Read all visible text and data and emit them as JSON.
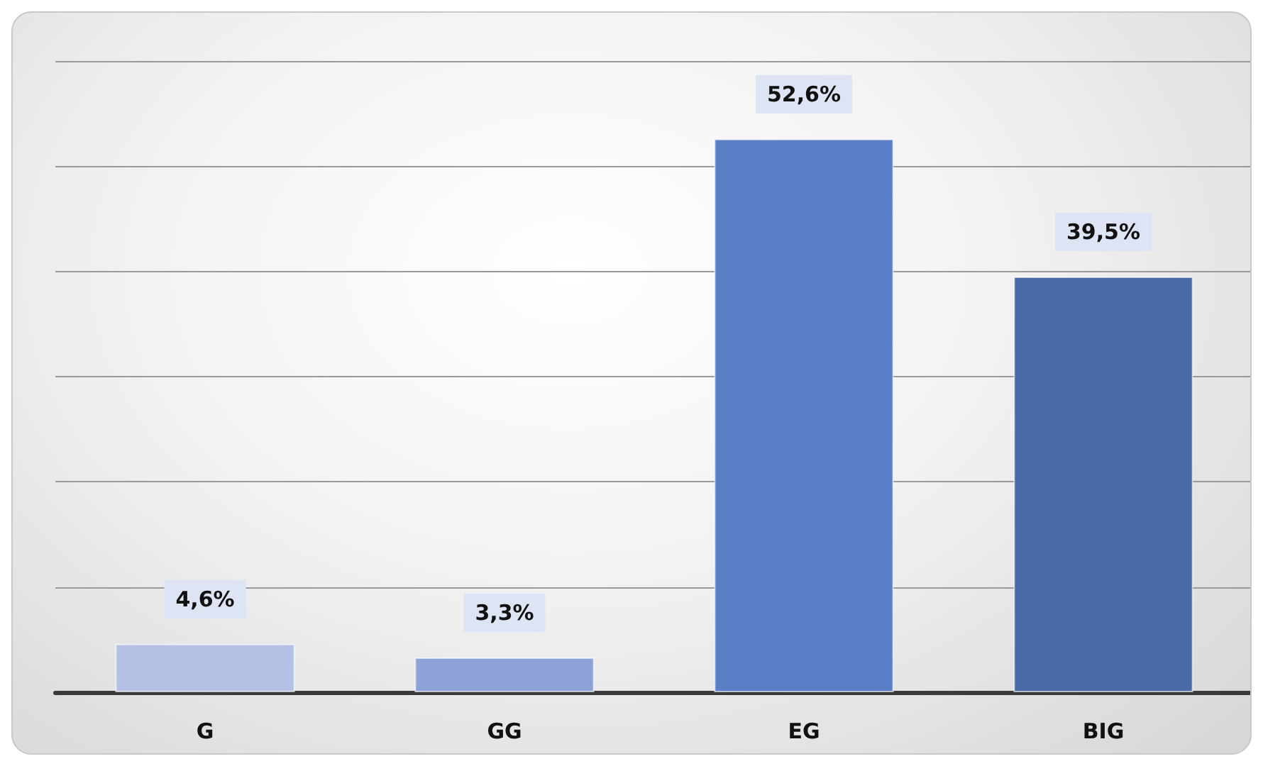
{
  "chart_data": {
    "type": "bar",
    "categories": [
      "G",
      "GG",
      "EG",
      "BIG"
    ],
    "values": [
      4.6,
      3.3,
      52.6,
      39.5
    ],
    "colors": [
      "#b4c0e4",
      "#8fa2d8",
      "#5b7fc6",
      "#4a6aa8"
    ],
    "value_labels": [
      "4,6%",
      "3,3%",
      "52,6%",
      "39,5%"
    ],
    "ylim": [
      0,
      60
    ],
    "yticks": [
      {
        "value": 0,
        "label": null
      },
      {
        "value": 10,
        "label": null
      },
      {
        "value": 20,
        "label": null
      },
      {
        "value": 30,
        "label": null
      },
      {
        "value": 40,
        "label": null
      },
      {
        "value": 50,
        "label": null
      },
      {
        "value": 60,
        "label": null
      }
    ],
    "grid": "y",
    "tick_labels": "x"
  }
}
